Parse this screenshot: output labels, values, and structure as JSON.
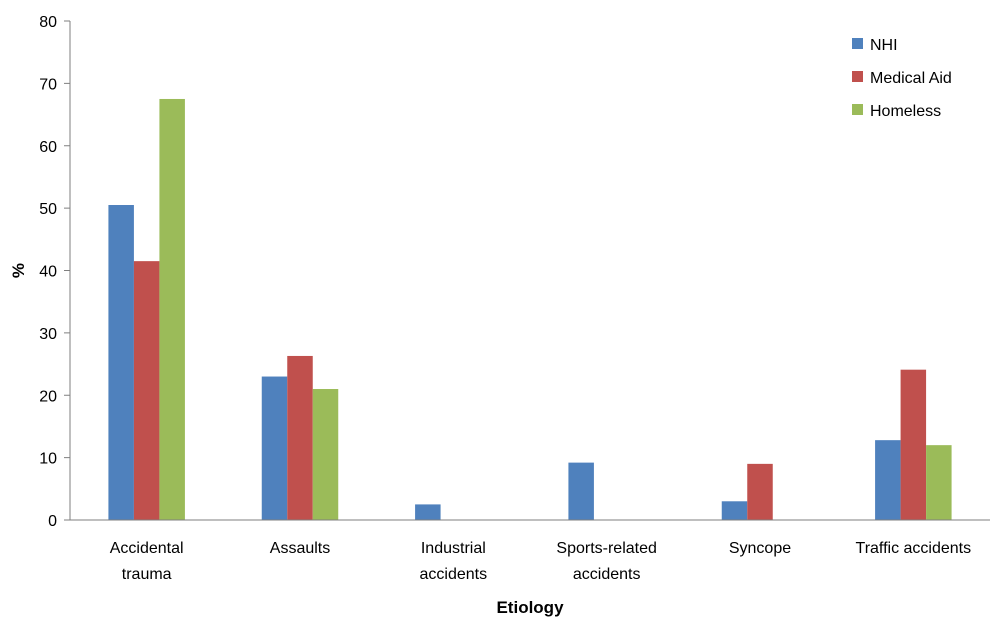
{
  "chart_data": {
    "type": "bar",
    "xlabel": "Etiology",
    "ylabel": "%",
    "ylim": [
      0,
      80
    ],
    "yticks": [
      0,
      10,
      20,
      30,
      40,
      50,
      60,
      70,
      80
    ],
    "grid": false,
    "legend_position": "top-right",
    "categories": [
      [
        "Accidental",
        "trauma"
      ],
      [
        "Assaults"
      ],
      [
        "Industrial",
        "accidents"
      ],
      [
        "Sports-related",
        "accidents"
      ],
      [
        "Syncope"
      ],
      [
        "Traffic accidents"
      ]
    ],
    "series": [
      {
        "name": "NHI",
        "color": "#4f81bd",
        "values": [
          50.5,
          23.0,
          2.5,
          9.2,
          3.0,
          12.8
        ]
      },
      {
        "name": "Medical Aid",
        "color": "#c0504d",
        "values": [
          41.5,
          26.3,
          0,
          0,
          9.0,
          24.1
        ]
      },
      {
        "name": "Homeless",
        "color": "#9bbb59",
        "values": [
          67.5,
          21.0,
          0,
          0,
          0,
          12.0
        ]
      }
    ]
  }
}
